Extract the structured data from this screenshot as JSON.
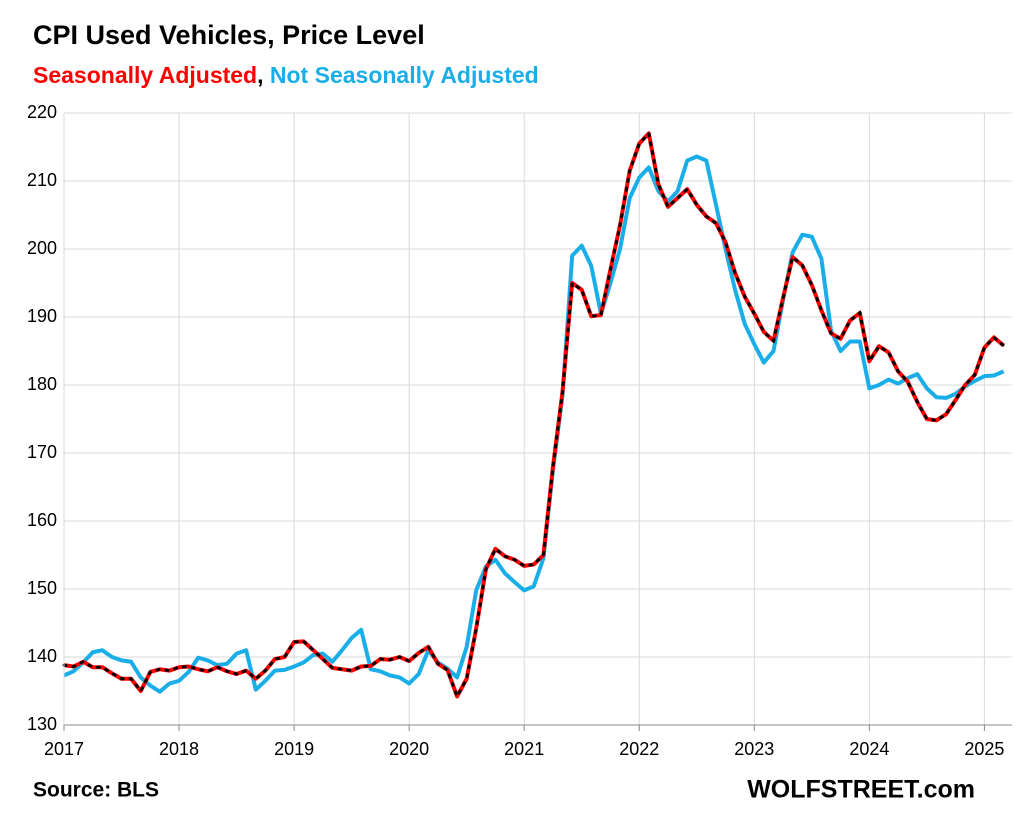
{
  "chart_data": {
    "type": "line",
    "title": "CPI Used Vehicles, Price Level",
    "legend_separator": ",",
    "source": "Source: BLS",
    "credit": "WOLFSTREET.com",
    "grid": true,
    "x": [
      2017,
      2017.083,
      2017.167,
      2017.25,
      2017.333,
      2017.417,
      2017.5,
      2017.583,
      2017.667,
      2017.75,
      2017.833,
      2017.917,
      2018,
      2018.083,
      2018.167,
      2018.25,
      2018.333,
      2018.417,
      2018.5,
      2018.583,
      2018.667,
      2018.75,
      2018.833,
      2018.917,
      2019,
      2019.083,
      2019.167,
      2019.25,
      2019.333,
      2019.417,
      2019.5,
      2019.583,
      2019.667,
      2019.75,
      2019.833,
      2019.917,
      2020,
      2020.083,
      2020.167,
      2020.25,
      2020.333,
      2020.417,
      2020.5,
      2020.583,
      2020.667,
      2020.75,
      2020.833,
      2020.917,
      2021,
      2021.083,
      2021.167,
      2021.25,
      2021.333,
      2021.417,
      2021.5,
      2021.583,
      2021.667,
      2021.75,
      2021.833,
      2021.917,
      2022,
      2022.083,
      2022.167,
      2022.25,
      2022.333,
      2022.417,
      2022.5,
      2022.583,
      2022.667,
      2022.75,
      2022.833,
      2022.917,
      2023,
      2023.083,
      2023.167,
      2023.25,
      2023.333,
      2023.417,
      2023.5,
      2023.583,
      2023.667,
      2023.75,
      2023.833,
      2023.917,
      2024,
      2024.083,
      2024.167,
      2024.25,
      2024.333,
      2024.417,
      2024.5,
      2024.583,
      2024.667,
      2024.75,
      2024.833,
      2024.917,
      2025,
      2025.083,
      2025.167
    ],
    "series": [
      {
        "name": "Not Seasonally Adjusted",
        "color": "#1aaee8",
        "values": [
          137.3,
          137.9,
          139.2,
          140.7,
          141.0,
          140.0,
          139.5,
          139.3,
          137.0,
          135.8,
          134.9,
          136.1,
          136.5,
          137.8,
          139.9,
          139.5,
          138.8,
          139.0,
          140.5,
          141.0,
          135.2,
          136.5,
          138.0,
          138.1,
          138.6,
          139.2,
          140.3,
          140.5,
          139.3,
          141.0,
          142.8,
          144.0,
          138.2,
          137.9,
          137.3,
          137.0,
          136.1,
          137.5,
          141.0,
          139.2,
          138.3,
          137.0,
          141.5,
          149.8,
          153.3,
          154.3,
          152.3,
          151.0,
          149.8,
          150.4,
          154.5,
          167.5,
          178.5,
          199.0,
          200.5,
          197.5,
          190.5,
          195.0,
          200.0,
          207.5,
          210.5,
          212.0,
          208.5,
          207.0,
          208.5,
          213.0,
          213.6,
          213.0,
          206.5,
          200.0,
          194.0,
          189.0,
          186.0,
          183.3,
          185.0,
          192.5,
          199.5,
          202.1,
          201.8,
          198.6,
          188.0,
          185.0,
          186.4,
          186.4,
          179.5,
          180.0,
          180.8,
          180.2,
          181.0,
          181.6,
          179.5,
          178.2,
          178.1,
          178.7,
          179.8,
          180.6,
          181.3,
          181.4,
          182.0
        ]
      },
      {
        "name": "Seasonally Adjusted",
        "color": "#ff0000",
        "values": [
          138.8,
          138.6,
          139.3,
          138.5,
          138.5,
          137.6,
          136.8,
          136.8,
          135.0,
          137.8,
          138.2,
          138.0,
          138.5,
          138.6,
          138.2,
          137.9,
          138.5,
          137.9,
          137.5,
          138.0,
          136.8,
          138.0,
          139.7,
          140.0,
          142.2,
          142.3,
          141.0,
          139.7,
          138.4,
          138.2,
          138.0,
          138.6,
          138.7,
          139.7,
          139.6,
          140.0,
          139.4,
          140.6,
          141.5,
          139.0,
          138.1,
          134.2,
          136.8,
          144.2,
          152.9,
          155.9,
          154.8,
          154.3,
          153.4,
          153.6,
          155.0,
          168.0,
          179.0,
          195.0,
          194.0,
          190.1,
          190.3,
          197.0,
          203.5,
          211.5,
          215.5,
          217.0,
          209.5,
          206.2,
          207.5,
          208.8,
          206.5,
          204.8,
          203.8,
          201.0,
          196.5,
          193.0,
          190.5,
          187.8,
          186.5,
          192.8,
          198.8,
          197.6,
          194.7,
          191.0,
          187.6,
          186.8,
          189.5,
          190.6,
          183.5,
          185.7,
          184.8,
          182.0,
          180.5,
          177.5,
          175.0,
          174.8,
          175.7,
          177.8,
          180.0,
          181.5,
          185.5,
          187.0,
          185.8
        ]
      }
    ],
    "xlim": [
      2017,
      2025.24
    ],
    "xticks": [
      2017,
      2018,
      2019,
      2020,
      2021,
      2022,
      2023,
      2024,
      2025
    ],
    "ylim": [
      130,
      220
    ],
    "yticks": [
      130,
      140,
      150,
      160,
      170,
      180,
      190,
      200,
      210,
      220
    ]
  }
}
